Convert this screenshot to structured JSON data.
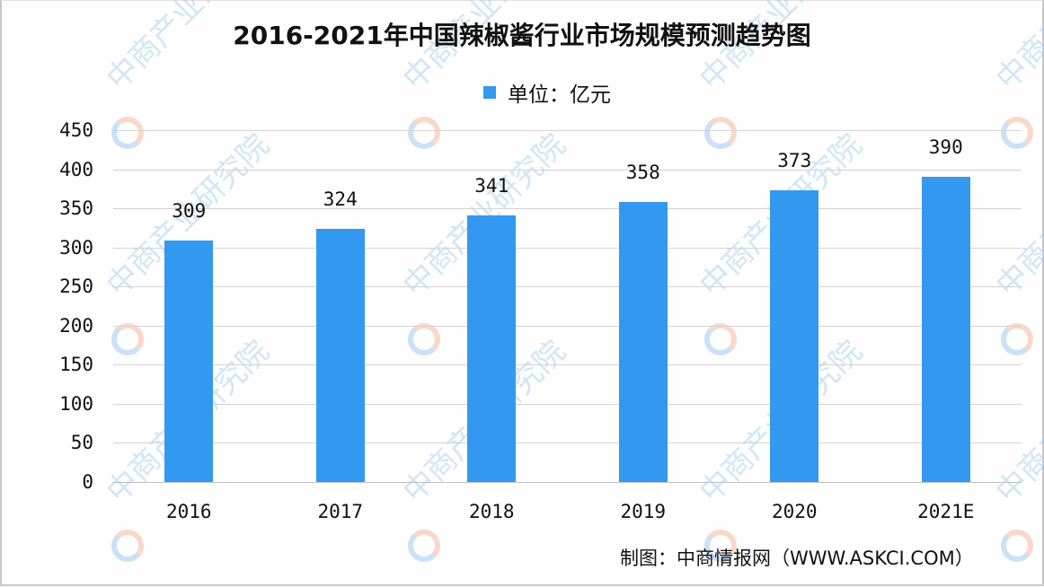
{
  "title": "2016-2021年中国辣椒酱行业市场规模预测趋势图",
  "legend": {
    "label": "单位：亿元",
    "color": "#3399f0"
  },
  "source": "制图：中商情报网（WWW.ASKCI.COM）",
  "watermark": "中商产业研究院",
  "chart_data": {
    "type": "bar",
    "title": "2016-2021年中国辣椒酱行业市场规模预测趋势图",
    "xlabel": "",
    "ylabel": "",
    "legend": [
      "单位：亿元"
    ],
    "legend_position": "top",
    "categories": [
      "2016",
      "2017",
      "2018",
      "2019",
      "2020",
      "2021E"
    ],
    "values": [
      309,
      324,
      341,
      358,
      373,
      390
    ],
    "value_labels": [
      "309",
      "324",
      "341",
      "358",
      "373",
      "390"
    ],
    "ylim": [
      0,
      450
    ],
    "yticks": [
      "0",
      "50",
      "100",
      "150",
      "200",
      "250",
      "300",
      "350",
      "400",
      "450"
    ],
    "grid": true,
    "bar_color": "#3399f0"
  }
}
